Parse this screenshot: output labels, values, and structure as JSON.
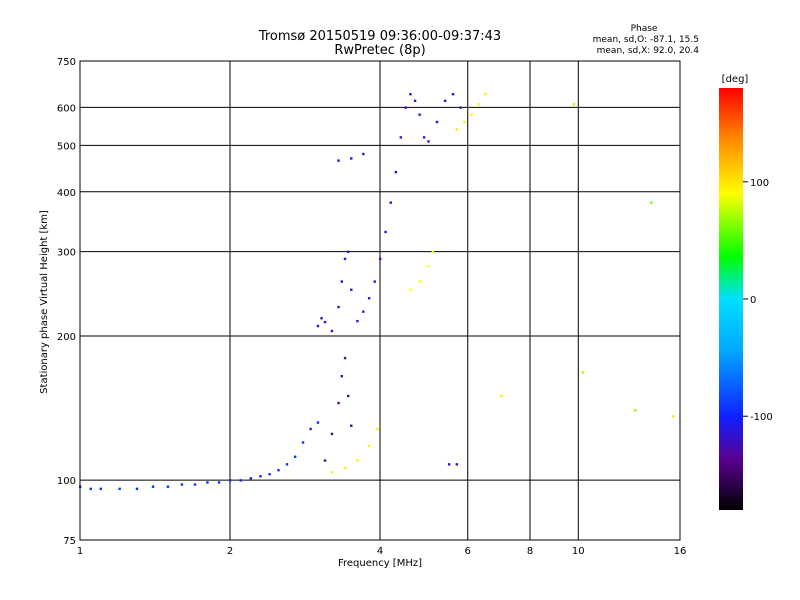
{
  "chart_data": {
    "type": "scatter",
    "title": "Tromsø 20150519 09:36:00-09:37:43",
    "subtitle": "RwPretec (8p)",
    "xlabel": "Frequency [MHz]",
    "ylabel": "Stationary phase Virtual Height [km]",
    "x_scale": "log",
    "y_scale": "log",
    "xlim": [
      1,
      16
    ],
    "ylim": [
      75,
      750
    ],
    "x_ticks": [
      1,
      2,
      4,
      6,
      8,
      10,
      16
    ],
    "x_tick_labels": [
      "1",
      "2",
      "4",
      "6",
      "8",
      "10",
      "16"
    ],
    "y_ticks": [
      75,
      100,
      200,
      300,
      400,
      500,
      600,
      750
    ],
    "y_tick_labels": [
      "75",
      "100",
      "200",
      "300",
      "400",
      "500",
      "600",
      "750"
    ],
    "grid": true,
    "stats": {
      "heading": "Phase",
      "line_o": "mean, sd,O: -87.1, 15.5",
      "line_x": "mean, sd,X:  92.0, 20.4"
    },
    "colorbar": {
      "label": "[deg]",
      "range": [
        -180,
        180
      ],
      "ticks": [
        100,
        0,
        -100
      ],
      "tick_labels": [
        "100",
        "0",
        "-100"
      ]
    },
    "series": [
      {
        "name": "",
        "points": [
          [
            1.0,
            97,
            -95
          ],
          [
            1.05,
            96,
            -95
          ],
          [
            1.1,
            96,
            -95
          ],
          [
            1.2,
            96,
            -95
          ],
          [
            1.3,
            96,
            -95
          ],
          [
            1.4,
            97,
            -95
          ],
          [
            1.5,
            97,
            -95
          ],
          [
            1.6,
            98,
            -95
          ],
          [
            1.7,
            98,
            -95
          ],
          [
            1.8,
            99,
            -95
          ],
          [
            1.9,
            99,
            -95
          ],
          [
            2.0,
            100,
            -95
          ],
          [
            2.1,
            100,
            -95
          ],
          [
            2.2,
            101,
            -95
          ],
          [
            2.3,
            102,
            -95
          ],
          [
            2.4,
            103,
            -95
          ],
          [
            2.5,
            105,
            -95
          ],
          [
            2.6,
            108,
            -95
          ],
          [
            2.7,
            112,
            -95
          ],
          [
            2.8,
            120,
            -95
          ],
          [
            2.9,
            128,
            -100
          ],
          [
            3.0,
            132,
            -100
          ],
          [
            3.0,
            210,
            -115
          ],
          [
            3.05,
            218,
            -115
          ],
          [
            3.1,
            214,
            -115
          ],
          [
            3.2,
            205,
            -115
          ],
          [
            3.3,
            230,
            -115
          ],
          [
            3.35,
            260,
            -115
          ],
          [
            3.4,
            290,
            -115
          ],
          [
            3.45,
            300,
            -115
          ],
          [
            3.5,
            250,
            -115
          ],
          [
            3.6,
            215,
            -115
          ],
          [
            3.7,
            225,
            -115
          ],
          [
            3.8,
            240,
            -115
          ],
          [
            3.9,
            260,
            -115
          ],
          [
            4.0,
            290,
            -115
          ],
          [
            4.1,
            330,
            -115
          ],
          [
            4.2,
            380,
            -115
          ],
          [
            4.3,
            440,
            -115
          ],
          [
            4.4,
            520,
            -115
          ],
          [
            4.5,
            600,
            -115
          ],
          [
            4.6,
            640,
            -115
          ],
          [
            4.7,
            620,
            -115
          ],
          [
            4.8,
            580,
            -115
          ],
          [
            4.9,
            520,
            -115
          ],
          [
            5.0,
            510,
            -115
          ],
          [
            5.2,
            560,
            -115
          ],
          [
            5.4,
            620,
            -115
          ],
          [
            5.6,
            640,
            -115
          ],
          [
            5.8,
            600,
            -115
          ],
          [
            3.3,
            465,
            -115
          ],
          [
            3.5,
            470,
            -115
          ],
          [
            3.7,
            480,
            -115
          ],
          [
            3.1,
            110,
            -130
          ],
          [
            3.2,
            125,
            -130
          ],
          [
            3.3,
            145,
            -130
          ],
          [
            3.35,
            165,
            -130
          ],
          [
            3.4,
            180,
            -130
          ],
          [
            3.45,
            150,
            -130
          ],
          [
            3.5,
            130,
            -130
          ],
          [
            5.5,
            108,
            -115
          ],
          [
            5.7,
            108,
            -115
          ]
        ]
      },
      {
        "name": "",
        "points": [
          [
            3.2,
            104,
            95
          ],
          [
            3.4,
            106,
            95
          ],
          [
            3.6,
            110,
            95
          ],
          [
            3.8,
            118,
            95
          ],
          [
            3.95,
            128,
            95
          ],
          [
            4.6,
            250,
            90
          ],
          [
            4.8,
            260,
            90
          ],
          [
            5.0,
            280,
            90
          ],
          [
            5.1,
            300,
            85
          ],
          [
            5.7,
            540,
            95
          ],
          [
            5.9,
            560,
            95
          ],
          [
            6.1,
            580,
            95
          ],
          [
            6.3,
            610,
            95
          ],
          [
            6.5,
            640,
            95
          ],
          [
            7.0,
            150,
            80
          ],
          [
            9.8,
            610,
            75
          ],
          [
            10.2,
            168,
            70
          ],
          [
            13.0,
            140,
            65
          ],
          [
            14.0,
            380,
            60
          ],
          [
            15.5,
            136,
            100
          ]
        ]
      }
    ]
  }
}
